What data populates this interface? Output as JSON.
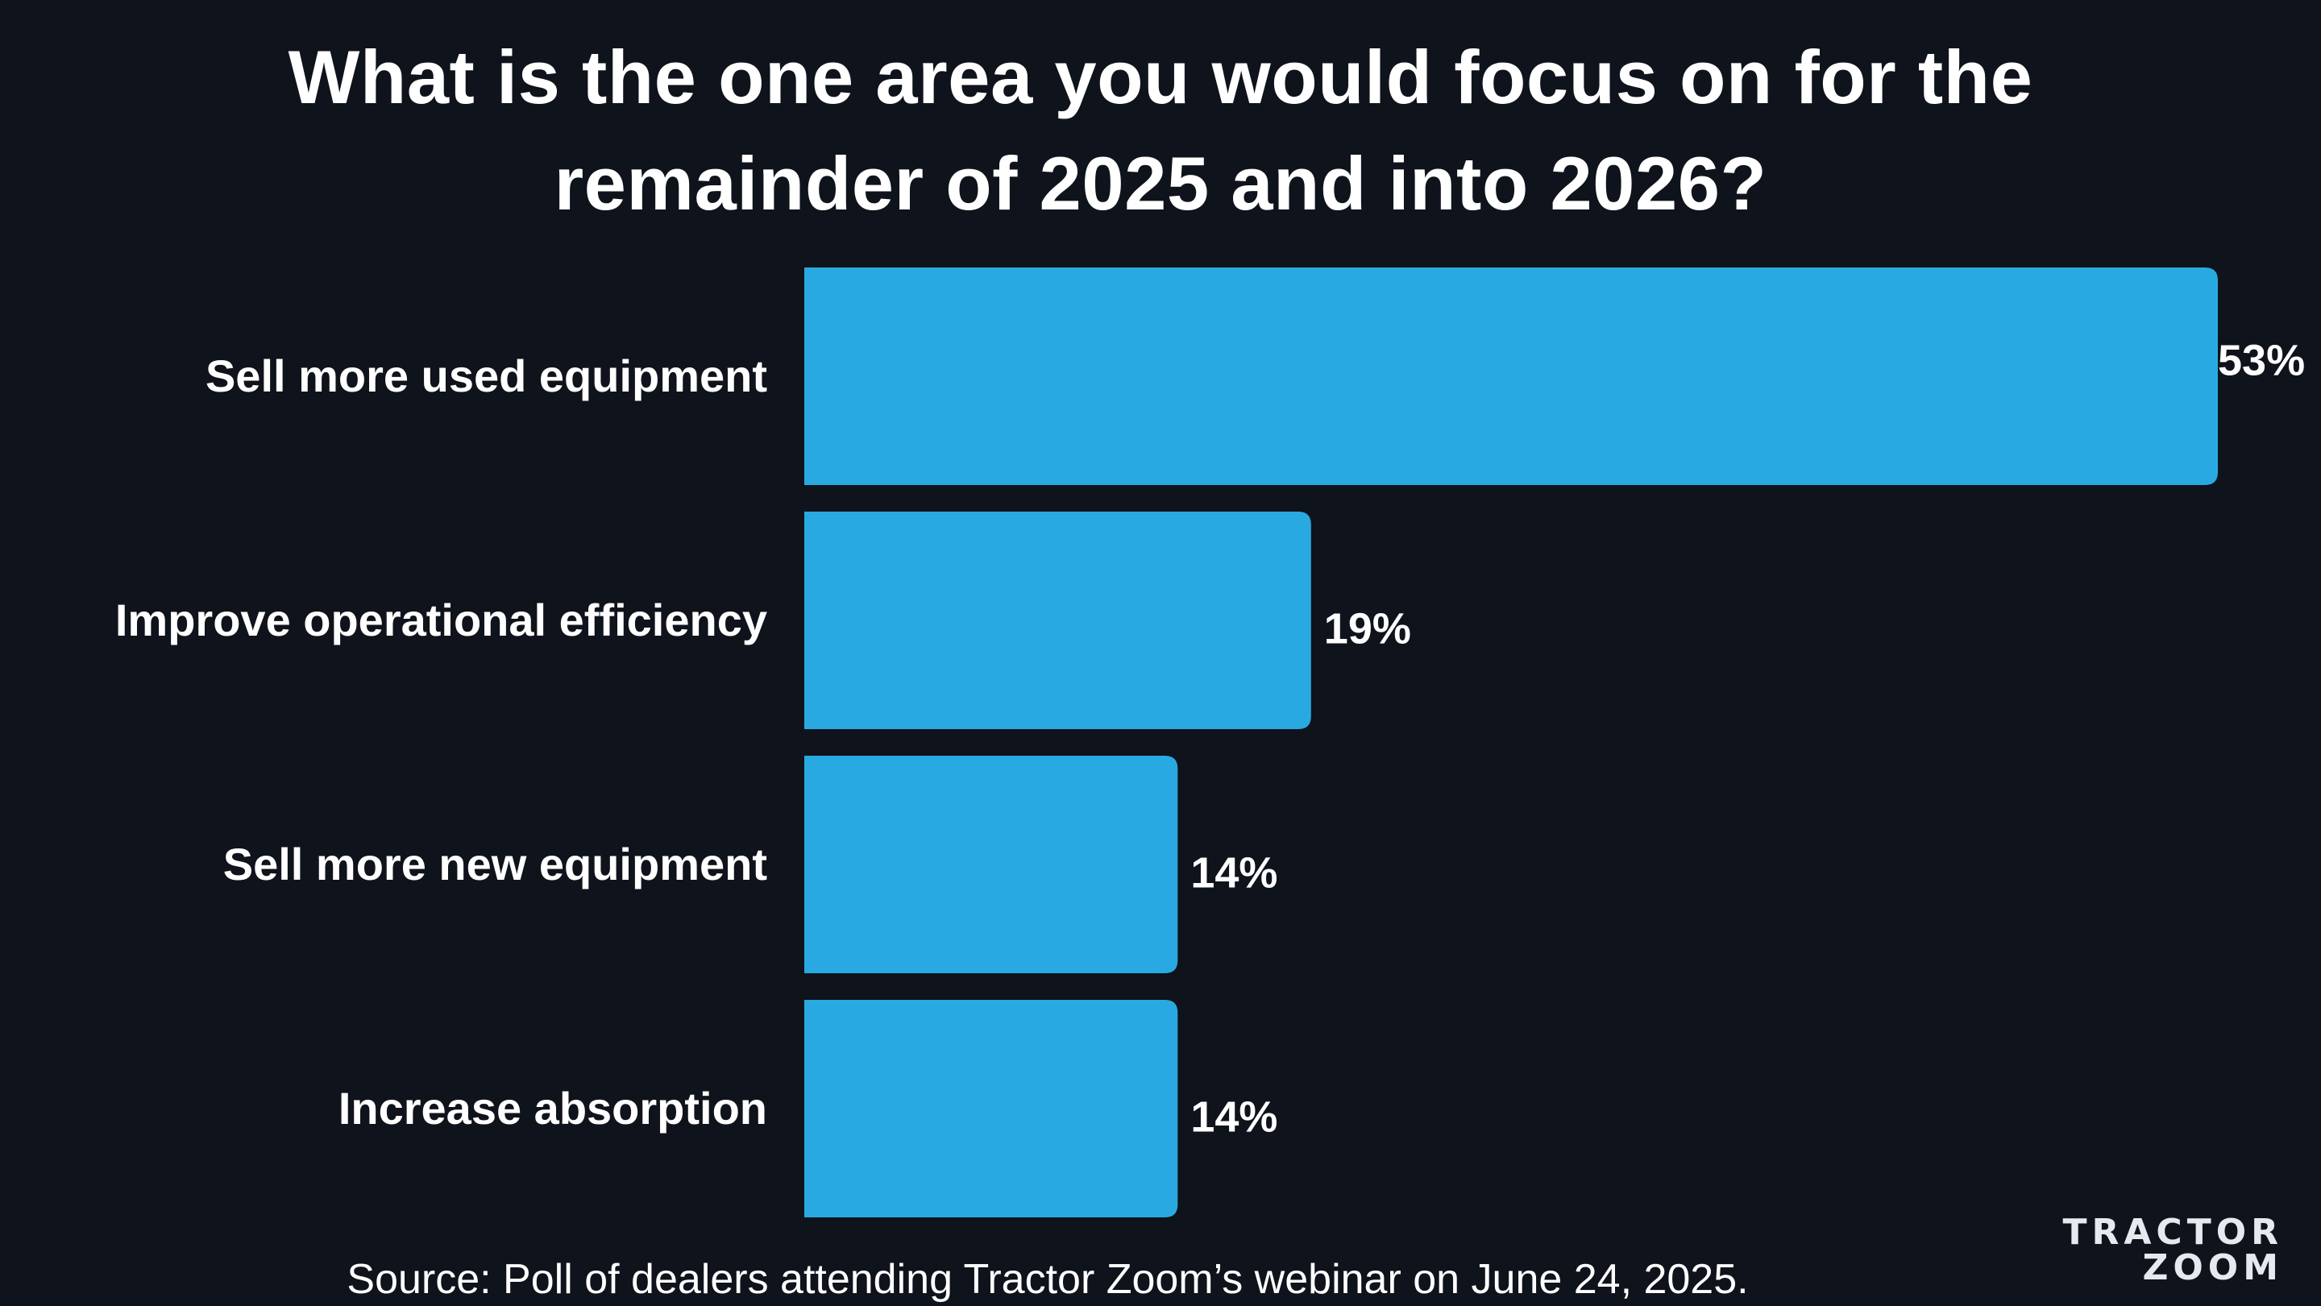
{
  "chart_data": {
    "type": "bar",
    "orientation": "horizontal",
    "title": "What is the one area you would focus on for the remainder of 2025 and into 2026?",
    "categories": [
      "Sell more used equipment",
      "Improve operational efficiency",
      "Sell more new equipment",
      "Increase absorption"
    ],
    "values": [
      53,
      19,
      14,
      14
    ],
    "value_labels": [
      "53%",
      "19%",
      "14%",
      "14%"
    ],
    "xlim": [
      0,
      53
    ],
    "bar_color": "#29a9e1",
    "grid": false
  },
  "source": "Source: Poll of dealers attending Tractor Zoom’s webinar on June 24, 2025.",
  "logo": {
    "line1": "TRACTOR",
    "line2": "ZOOM",
    "accent_color": "#29a9e1"
  },
  "colors": {
    "background": "#0f131b",
    "text": "#ffffff"
  }
}
